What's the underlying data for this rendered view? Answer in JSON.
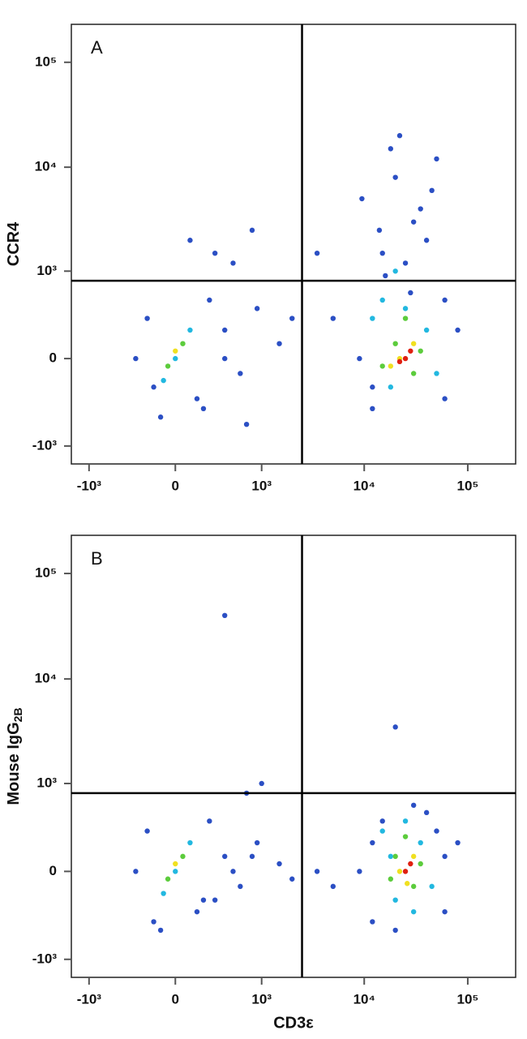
{
  "chart_data": [
    {
      "type": "scatter",
      "panel_label": "A",
      "ylabel": "CCR4",
      "xscale": "biexponential",
      "yscale": "biexponential",
      "xlim": [
        -1500,
        290000
      ],
      "ylim": [
        -1500,
        230000
      ],
      "xticks": [
        {
          "value": -1000,
          "label": "-10³"
        },
        0,
        {
          "value": 1000,
          "label": "10³"
        },
        {
          "value": 10000,
          "label": "10⁴"
        },
        {
          "value": 100000,
          "label": "10⁵"
        }
      ],
      "yticks": [
        {
          "value": -1000,
          "label": "-10³"
        },
        0,
        {
          "value": 1000,
          "label": "10³"
        },
        {
          "value": 10000,
          "label": "10⁴"
        },
        {
          "value": 100000,
          "label": "10⁵"
        }
      ],
      "quadrant": {
        "x": 2500,
        "y": 800
      },
      "series": [
        {
          "color": "#2b4fc4",
          "x": [
            -200,
            150,
            -100,
            250,
            -300,
            400,
            600,
            900,
            1500,
            300,
            100,
            500,
            800,
            2000,
            9000,
            12000,
            60000,
            80000,
            15000,
            40000,
            9500,
            20000,
            30000,
            50000,
            14000,
            18000,
            25000,
            35000,
            22000,
            45000,
            16000,
            28000,
            12000,
            60000,
            3500,
            5000,
            400,
            700,
            -150,
            200
          ],
          "y": [
            300,
            -300,
            -500,
            500,
            0,
            200,
            -100,
            400,
            100,
            1500,
            2000,
            1200,
            2500,
            300,
            0,
            -400,
            -300,
            200,
            1500,
            2000,
            5000,
            8000,
            3000,
            12000,
            2500,
            15000,
            1200,
            4000,
            20000,
            6000,
            900,
            600,
            -200,
            500,
            1500,
            300,
            0,
            -600,
            -200,
            -400
          ]
        },
        {
          "color": "#22b8e0",
          "x": [
            0,
            -80,
            100,
            12000,
            18000,
            25000,
            40000,
            50000,
            20000,
            15000
          ],
          "y": [
            0,
            -150,
            200,
            300,
            -200,
            400,
            200,
            -100,
            1000,
            500
          ]
        },
        {
          "color": "#5ccc3c",
          "x": [
            50,
            -50,
            20000,
            30000,
            15000,
            35000,
            25000
          ],
          "y": [
            100,
            -50,
            100,
            -100,
            -50,
            50,
            300
          ]
        },
        {
          "color": "#f0e020",
          "x": [
            0,
            22000,
            30000,
            18000
          ],
          "y": [
            50,
            0,
            100,
            -50
          ]
        },
        {
          "color": "#e02010",
          "x": [
            25000,
            28000,
            22000
          ],
          "y": [
            0,
            50,
            -20
          ]
        }
      ]
    },
    {
      "type": "scatter",
      "panel_label": "B",
      "ylabel": "Mouse IgG",
      "ylabel_subscript": "2B",
      "xlabel": "CD3ε",
      "xscale": "biexponential",
      "yscale": "biexponential",
      "xlim": [
        -1500,
        290000
      ],
      "ylim": [
        -1500,
        230000
      ],
      "xticks": [
        {
          "value": -1000,
          "label": "-10³"
        },
        0,
        {
          "value": 1000,
          "label": "10³"
        },
        {
          "value": 10000,
          "label": "10⁴"
        },
        {
          "value": 100000,
          "label": "10⁵"
        }
      ],
      "yticks": [
        {
          "value": -1000,
          "label": "-10³"
        },
        0,
        {
          "value": 1000,
          "label": "10³"
        },
        {
          "value": 10000,
          "label": "10⁴"
        },
        {
          "value": 100000,
          "label": "10⁵"
        }
      ],
      "quadrant": {
        "x": 2500,
        "y": 800
      },
      "series": [
        {
          "color": "#2b4fc4",
          "x": [
            -200,
            150,
            -100,
            250,
            -300,
            400,
            600,
            900,
            1500,
            300,
            500,
            800,
            2000,
            9000,
            12000,
            60000,
            80000,
            15000,
            40000,
            20000,
            30000,
            50000,
            12000,
            60000,
            3500,
            5000,
            -150,
            200,
            700,
            1000,
            20000,
            400
          ],
          "y": [
            300,
            -300,
            -500,
            400,
            0,
            100,
            -100,
            200,
            50,
            -200,
            0,
            100,
            -50,
            0,
            -400,
            -300,
            200,
            400,
            500,
            -500,
            600,
            300,
            200,
            100,
            0,
            -100,
            -400,
            -200,
            800,
            1000,
            3500,
            40000
          ]
        },
        {
          "color": "#22b8e0",
          "x": [
            0,
            -80,
            100,
            15000,
            20000,
            25000,
            35000,
            45000,
            30000,
            18000
          ],
          "y": [
            0,
            -150,
            200,
            300,
            -200,
            400,
            200,
            -100,
            -300,
            100
          ]
        },
        {
          "color": "#5ccc3c",
          "x": [
            50,
            -50,
            20000,
            30000,
            25000,
            35000,
            18000
          ],
          "y": [
            100,
            -50,
            100,
            -100,
            250,
            50,
            -50
          ]
        },
        {
          "color": "#f0e020",
          "x": [
            0,
            22000,
            30000,
            26000
          ],
          "y": [
            50,
            0,
            100,
            -80
          ]
        },
        {
          "color": "#e02010",
          "x": [
            25000,
            28000
          ],
          "y": [
            0,
            50
          ]
        }
      ]
    }
  ]
}
